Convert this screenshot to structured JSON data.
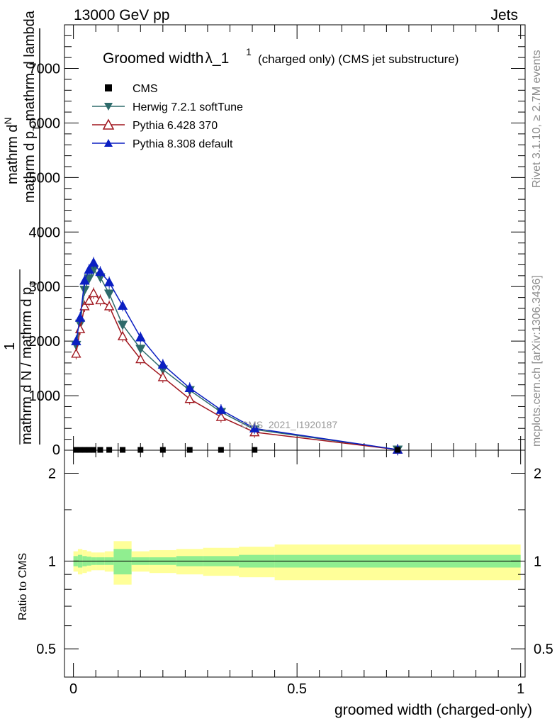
{
  "header": {
    "left": "13000 GeV pp",
    "right": "Jets"
  },
  "side_labels": {
    "rivet": "Rivet 3.1.10, ≥ 2.7M events",
    "mcplots": "mcplots.cern.ch [arXiv:1306.3436]"
  },
  "plot_title": {
    "main": "Groomed width",
    "lambda": "λ_1",
    "sup": "1",
    "rest": "(charged only) (CMS jet substructure)"
  },
  "watermark": "CMS_2021_I1920187",
  "legend": [
    {
      "label": "CMS",
      "color": "#000000",
      "marker": "square"
    },
    {
      "label": "Herwig 7.2.1 softTune",
      "color": "#2e6b6b",
      "marker": "triangle-down"
    },
    {
      "label": "Pythia 6.428 370",
      "color": "#a0161e",
      "marker": "triangle-open"
    },
    {
      "label": "Pythia 8.308 default",
      "color": "#0b1fc2",
      "marker": "triangle-up"
    }
  ],
  "axes": {
    "ylabel_main": {
      "num_top": "mathrm d",
      "num_N": "N",
      "num_rest": "mathrm d p",
      "num_T": "T",
      "num_tail": " mathrm d lambda",
      "one": "1",
      "den": "mathrm d N / mathrm d p",
      "den_T": "T"
    },
    "ylabel_ratio": "Ratio to CMS",
    "xlabel": "groomed width (charged-only)",
    "main_yticks": [
      "1000",
      "2000",
      "3000",
      "4000",
      "5000",
      "6000",
      "7000"
    ],
    "main_zero": "0",
    "ratio_yticks": [
      "0.5",
      "1",
      "2"
    ],
    "xticks": [
      "0",
      "0.5",
      "1"
    ]
  },
  "chart_data": {
    "type": "line",
    "xlabel": "groomed width (charged-only)",
    "ylabel": "Ratio to CMS",
    "xlim": [
      -0.02,
      1.01
    ],
    "ylim": [
      0,
      7800
    ],
    "ratio_ylim": [
      0.4,
      2.4
    ],
    "ratio_scale": "log",
    "legend_position": "top-left",
    "cms": {
      "x": [
        0.006,
        0.015,
        0.025,
        0.035,
        0.045,
        0.06,
        0.08,
        0.11,
        0.15,
        0.2,
        0.26,
        0.33,
        0.405,
        0.725
      ],
      "y": [
        6,
        6,
        6,
        6,
        6,
        6,
        6,
        6,
        6,
        6,
        6,
        6,
        6,
        6
      ]
    },
    "series": [
      {
        "name": "Herwig 7.2.1 softTune",
        "x": [
          0.006,
          0.015,
          0.025,
          0.035,
          0.045,
          0.06,
          0.08,
          0.11,
          0.15,
          0.2,
          0.26,
          0.33,
          0.405,
          0.725
        ],
        "y": [
          1930,
          2320,
          2940,
          3150,
          3310,
          3170,
          2870,
          2300,
          1860,
          1480,
          1100,
          700,
          380,
          10
        ]
      },
      {
        "name": "Pythia 6.428 370",
        "x": [
          0.006,
          0.015,
          0.025,
          0.035,
          0.045,
          0.06,
          0.08,
          0.11,
          0.15,
          0.2,
          0.26,
          0.33,
          0.405,
          0.725
        ],
        "y": [
          1770,
          2220,
          2640,
          2740,
          2880,
          2750,
          2640,
          2090,
          1670,
          1340,
          940,
          610,
          330,
          10
        ]
      },
      {
        "name": "Pythia 8.308 default",
        "x": [
          0.006,
          0.015,
          0.025,
          0.035,
          0.045,
          0.06,
          0.08,
          0.11,
          0.15,
          0.2,
          0.26,
          0.33,
          0.405,
          0.725
        ],
        "y": [
          2000,
          2430,
          3110,
          3310,
          3440,
          3270,
          3080,
          2650,
          2070,
          1570,
          1140,
          740,
          400,
          10
        ]
      }
    ],
    "ratio_bands": {
      "edges": [
        0,
        0.01,
        0.02,
        0.03,
        0.04,
        0.05,
        0.07,
        0.09,
        0.13,
        0.17,
        0.23,
        0.29,
        0.37,
        0.45,
        1.0
      ],
      "inner": [
        0.04,
        0.05,
        0.04,
        0.035,
        0.03,
        0.03,
        0.03,
        0.1,
        0.03,
        0.03,
        0.04,
        0.04,
        0.05,
        0.05
      ],
      "outer": [
        0.08,
        0.1,
        0.09,
        0.08,
        0.07,
        0.07,
        0.08,
        0.17,
        0.08,
        0.09,
        0.1,
        0.11,
        0.12,
        0.14
      ]
    },
    "colors": {
      "inner_band": "#90ee90",
      "outer_band": "#ffff99"
    }
  }
}
